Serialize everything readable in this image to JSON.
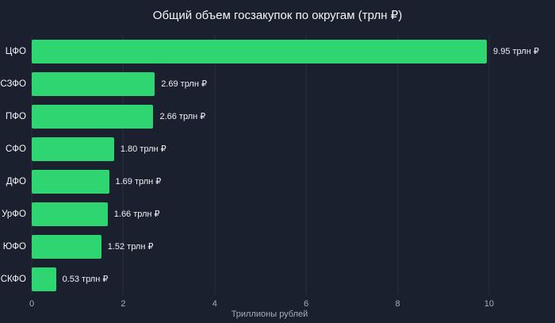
{
  "chart_data": {
    "type": "bar",
    "orientation": "horizontal",
    "title": "Общий объем госзакупок по округам (трлн ₽)",
    "categories": [
      "ЦФО",
      "СЗФО",
      "ПФО",
      "СФО",
      "ДФО",
      "УрФО",
      "ЮФО",
      "СКФО"
    ],
    "values": [
      9.95,
      2.69,
      2.66,
      1.8,
      1.69,
      1.66,
      1.52,
      0.53
    ],
    "value_labels": [
      "9.95 трлн ₽",
      "2.69 трлн ₽",
      "2.66 трлн ₽",
      "1.80 трлн ₽",
      "1.69 трлн ₽",
      "1.66 трлн ₽",
      "1.52 трлн ₽",
      "0.53 трлн ₽"
    ],
    "xlabel": "Триллионы рублей",
    "ylabel": "",
    "xlim": [
      0,
      10.4
    ],
    "xticks": [
      0,
      2,
      4,
      6,
      8,
      10
    ],
    "grid": "vertical",
    "legend": "none",
    "colors": {
      "bar": "#2fd571",
      "background": "#1b202f",
      "grid": "#2b3140",
      "title_text": "#f3f5f8",
      "tick_text": "#a7adba",
      "value_text": "#eef0f4"
    }
  }
}
